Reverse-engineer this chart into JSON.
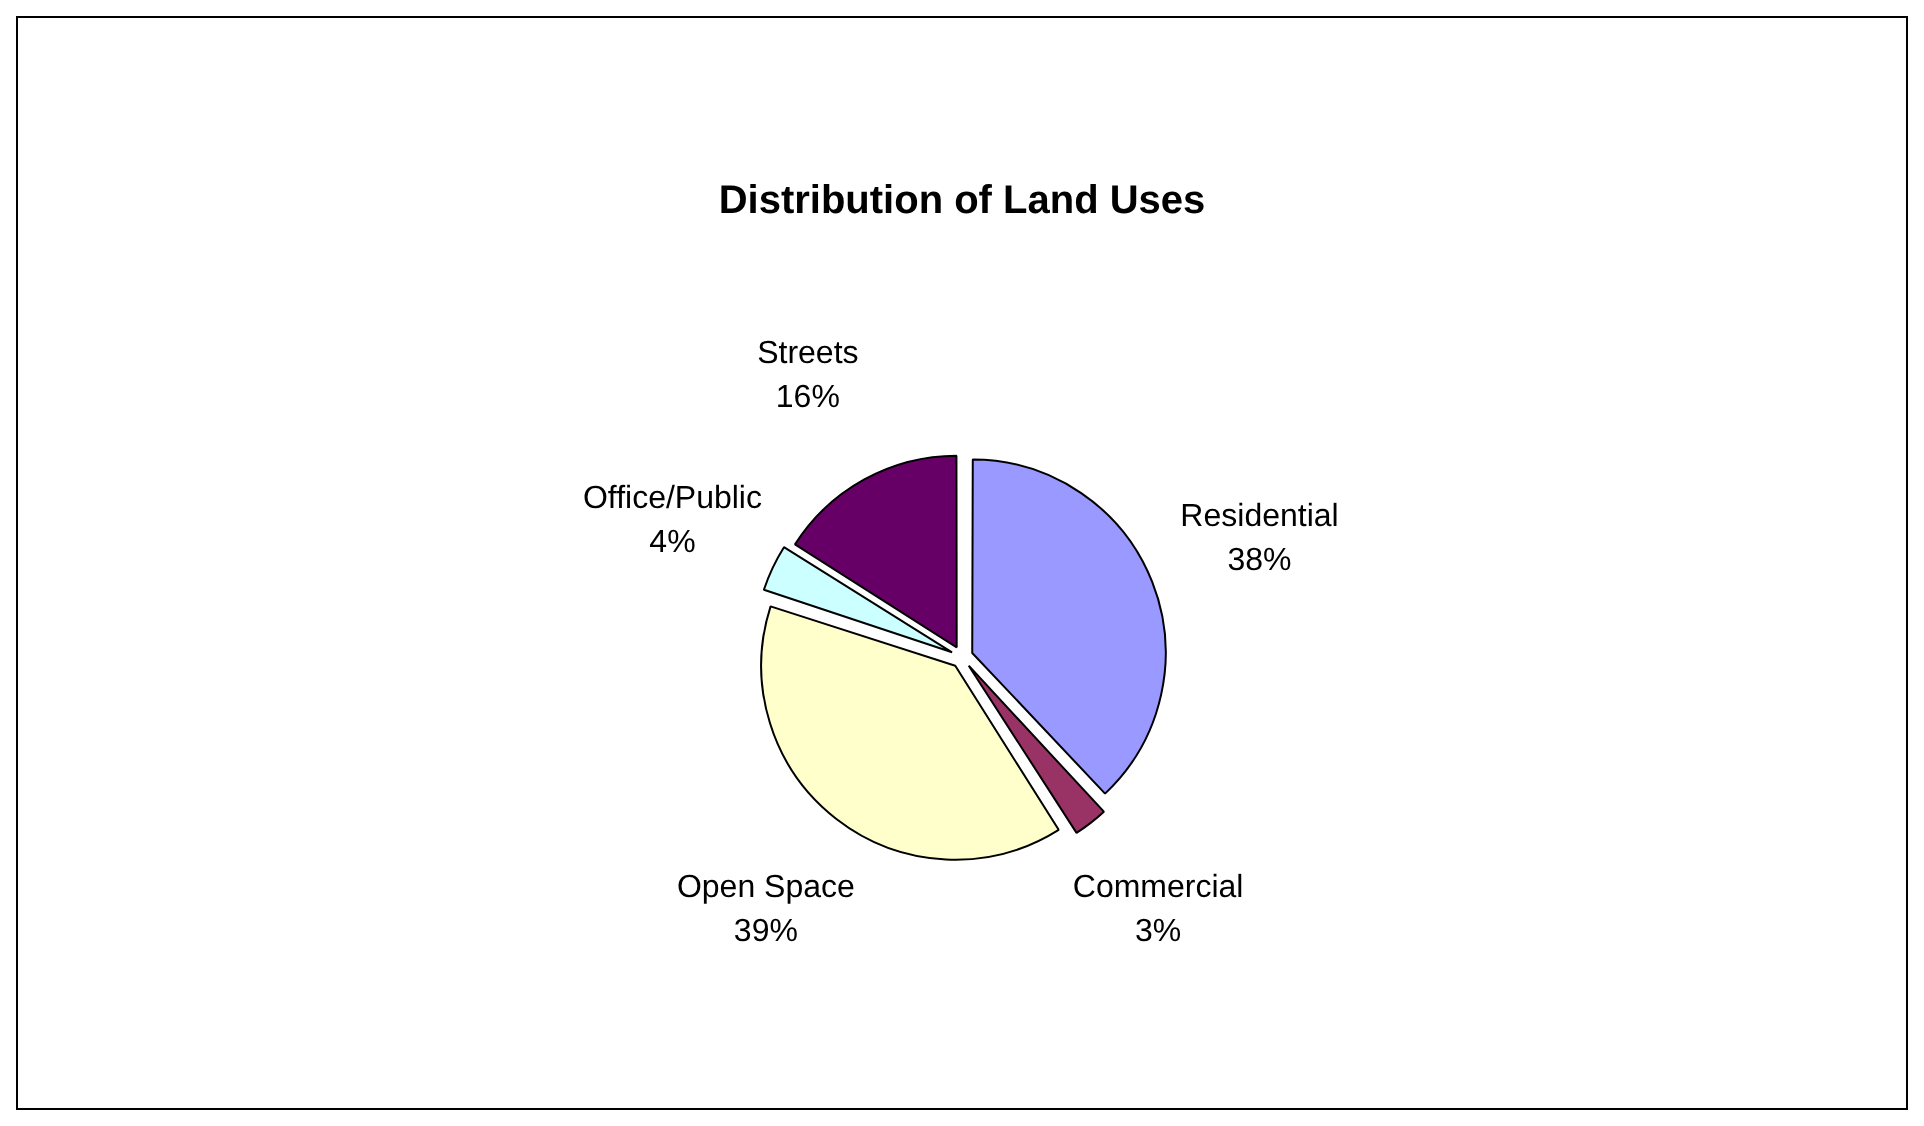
{
  "chart_data": {
    "type": "pie",
    "title": "Distribution of Land Uses",
    "categories": [
      "Residential",
      "Commercial",
      "Open Space",
      "Office/Public",
      "Streets"
    ],
    "values": [
      38,
      3,
      39,
      4,
      16
    ],
    "value_labels": [
      "38%",
      "3%",
      "39%",
      "4%",
      "16%"
    ],
    "colors": [
      "#9999ff",
      "#993366",
      "#ffffcc",
      "#ccffff",
      "#660066"
    ],
    "legend": false
  }
}
